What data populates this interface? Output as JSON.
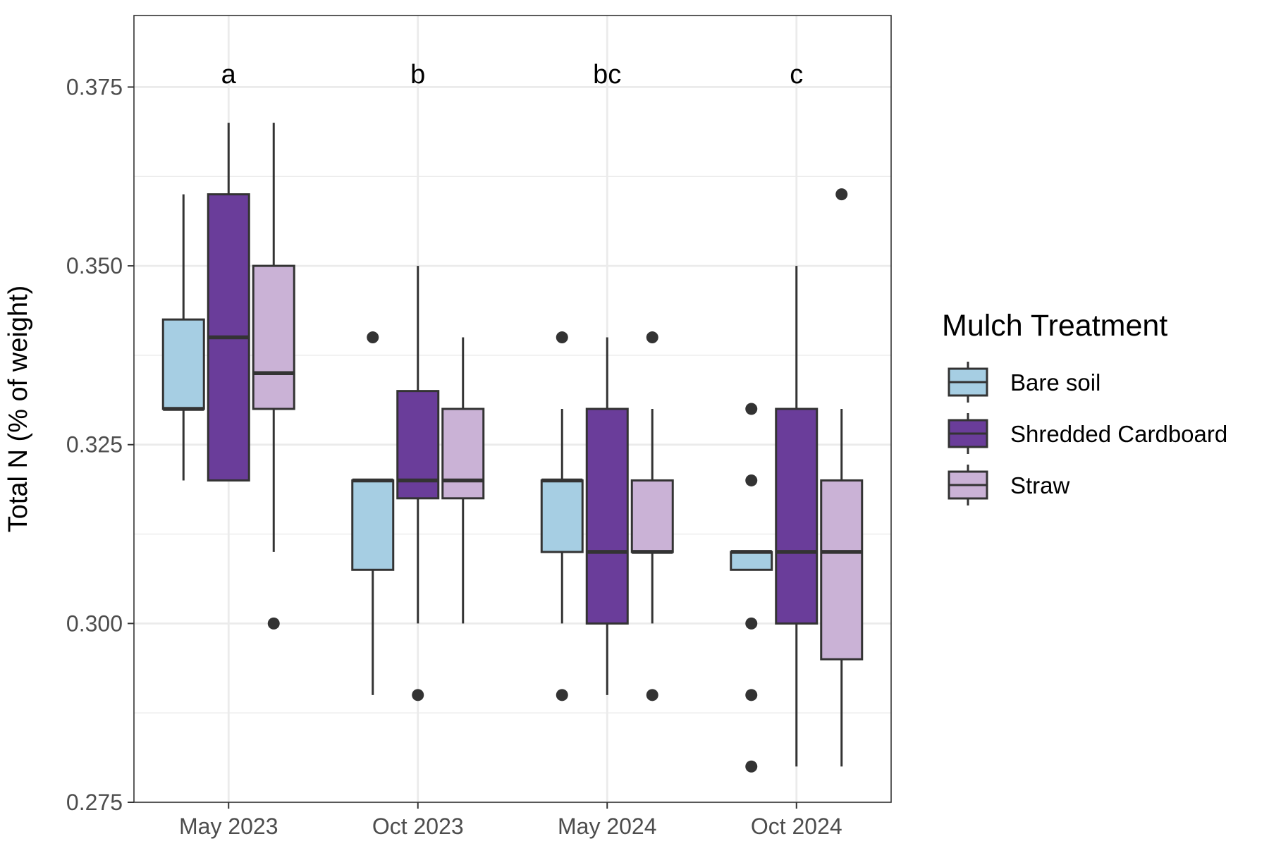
{
  "chart_data": {
    "type": "box",
    "ylabel": "Total N (% of weight)",
    "xlabel": "",
    "ylim": [
      0.275,
      0.385
    ],
    "yticks": [
      "0.275",
      "0.300",
      "0.325",
      "0.350",
      "0.375"
    ],
    "ytick_values": [
      0.275,
      0.3,
      0.325,
      0.35,
      0.375
    ],
    "grid": true,
    "categories": [
      "May 2023",
      "Oct 2023",
      "May 2024",
      "Oct 2024"
    ],
    "letters": [
      "a",
      "b",
      "bc",
      "c"
    ],
    "legend": {
      "title": "Mulch Treatment",
      "position": "right"
    },
    "series": [
      {
        "name": "Bare soil",
        "color": "#a6cee3",
        "boxes": [
          {
            "low": 0.32,
            "q1": 0.33,
            "median": 0.33,
            "q3": 0.3425,
            "high": 0.36,
            "outliers": []
          },
          {
            "low": 0.29,
            "q1": 0.3075,
            "median": 0.32,
            "q3": 0.32,
            "high": 0.32,
            "outliers": [
              0.34
            ]
          },
          {
            "low": 0.3,
            "q1": 0.31,
            "median": 0.32,
            "q3": 0.32,
            "high": 0.33,
            "outliers": [
              0.34,
              0.29
            ]
          },
          {
            "low": 0.3075,
            "q1": 0.3075,
            "median": 0.31,
            "q3": 0.31,
            "high": 0.31,
            "outliers": [
              0.33,
              0.32,
              0.3,
              0.29,
              0.28
            ]
          }
        ]
      },
      {
        "name": "Shredded Cardboard",
        "color": "#6a3d9a",
        "boxes": [
          {
            "low": 0.32,
            "q1": 0.32,
            "median": 0.34,
            "q3": 0.36,
            "high": 0.37,
            "outliers": []
          },
          {
            "low": 0.3,
            "q1": 0.3175,
            "median": 0.32,
            "q3": 0.3325,
            "high": 0.35,
            "outliers": [
              0.29
            ]
          },
          {
            "low": 0.29,
            "q1": 0.3,
            "median": 0.31,
            "q3": 0.33,
            "high": 0.34,
            "outliers": []
          },
          {
            "low": 0.28,
            "q1": 0.3,
            "median": 0.31,
            "q3": 0.33,
            "high": 0.35,
            "outliers": []
          }
        ]
      },
      {
        "name": "Straw",
        "color": "#cab2d6",
        "boxes": [
          {
            "low": 0.31,
            "q1": 0.33,
            "median": 0.335,
            "q3": 0.35,
            "high": 0.37,
            "outliers": [
              0.3
            ]
          },
          {
            "low": 0.3,
            "q1": 0.3175,
            "median": 0.32,
            "q3": 0.33,
            "high": 0.34,
            "outliers": []
          },
          {
            "low": 0.3,
            "q1": 0.31,
            "median": 0.31,
            "q3": 0.32,
            "high": 0.33,
            "outliers": [
              0.34,
              0.29
            ]
          },
          {
            "low": 0.28,
            "q1": 0.295,
            "median": 0.31,
            "q3": 0.32,
            "high": 0.33,
            "outliers": [
              0.36
            ]
          }
        ]
      }
    ]
  }
}
